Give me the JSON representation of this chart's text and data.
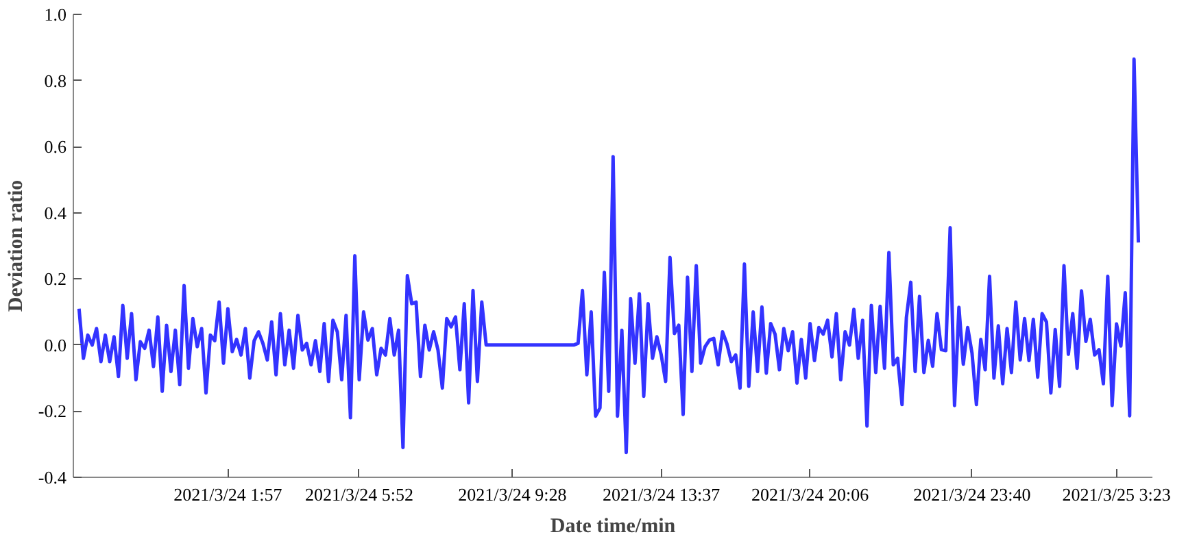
{
  "chart_data": {
    "type": "line",
    "xlabel": "Date time/min",
    "ylabel": "Deviation ratio",
    "categories": [
      null,
      null,
      null,
      null,
      null,
      null,
      null,
      null,
      null,
      null,
      null,
      null,
      null,
      null,
      null,
      null,
      null,
      null,
      null,
      null,
      null,
      null,
      null,
      null,
      null,
      null,
      null,
      null,
      null,
      null,
      null,
      null,
      null,
      null,
      "2021/3/24 1:57",
      null,
      null,
      null,
      null,
      null,
      null,
      null,
      null,
      null,
      null,
      null,
      null,
      null,
      null,
      null,
      null,
      null,
      null,
      null,
      null,
      null,
      null,
      null,
      null,
      null,
      null,
      null,
      null,
      null,
      "2021/3/24 5:52",
      null,
      null,
      null,
      null,
      null,
      null,
      null,
      null,
      null,
      null,
      null,
      null,
      null,
      null,
      null,
      null,
      null,
      null,
      null,
      null,
      null,
      null,
      null,
      null,
      null,
      null,
      null,
      null,
      null,
      null,
      null,
      null,
      null,
      null,
      "2021/3/24 9:28",
      null,
      null,
      null,
      null,
      null,
      null,
      null,
      null,
      null,
      null,
      null,
      null,
      null,
      null,
      null,
      null,
      null,
      null,
      null,
      null,
      null,
      null,
      null,
      null,
      null,
      null,
      null,
      null,
      null,
      null,
      null,
      null,
      null,
      "2021/3/24 13:37",
      null,
      null,
      null,
      null,
      null,
      null,
      null,
      null,
      null,
      null,
      null,
      null,
      null,
      null,
      null,
      null,
      null,
      null,
      null,
      null,
      null,
      null,
      null,
      null,
      null,
      null,
      null,
      null,
      null,
      null,
      null,
      null,
      null,
      "2021/3/24 20:06",
      null,
      null,
      null,
      null,
      null,
      null,
      null,
      null,
      null,
      null,
      null,
      null,
      null,
      null,
      null,
      null,
      null,
      null,
      null,
      null,
      null,
      null,
      null,
      null,
      null,
      null,
      null,
      null,
      null,
      null,
      null,
      null,
      null,
      null,
      null,
      null,
      "2021/3/24 23:40",
      null,
      null,
      null,
      null,
      null,
      null,
      null,
      null,
      null,
      null,
      null,
      null,
      null,
      null,
      null,
      null,
      null,
      null,
      null,
      null,
      null,
      null,
      null,
      null,
      null,
      null,
      null,
      null,
      null,
      null,
      null,
      null,
      "2021/3/25 3:23",
      null,
      null,
      null,
      null,
      null
    ],
    "series": [
      {
        "color": "#3333ff",
        "values": [
          0.11,
          -0.04,
          0.03,
          0.0,
          0.05,
          -0.05,
          0.03,
          -0.05,
          0.025,
          -0.095,
          0.12,
          -0.04,
          0.095,
          -0.105,
          0.01,
          -0.01,
          0.045,
          -0.065,
          0.085,
          -0.14,
          0.06,
          -0.08,
          0.045,
          -0.12,
          0.18,
          -0.07,
          0.08,
          -0.005,
          0.05,
          -0.145,
          0.03,
          0.013,
          0.13,
          -0.055,
          0.11,
          -0.02,
          0.017,
          -0.03,
          0.05,
          -0.1,
          0.013,
          0.04,
          0.005,
          -0.045,
          0.07,
          -0.09,
          0.095,
          -0.06,
          0.045,
          -0.07,
          0.09,
          -0.015,
          0.005,
          -0.06,
          0.013,
          -0.08,
          0.065,
          -0.11,
          0.075,
          0.04,
          -0.105,
          0.09,
          -0.22,
          0.27,
          -0.105,
          0.1,
          0.015,
          0.05,
          -0.09,
          -0.01,
          -0.03,
          0.08,
          -0.03,
          0.045,
          -0.31,
          0.21,
          0.125,
          0.13,
          -0.095,
          0.06,
          -0.015,
          0.04,
          -0.015,
          -0.13,
          0.08,
          0.055,
          0.085,
          -0.075,
          0.125,
          -0.175,
          0.165,
          -0.11,
          0.13,
          0.0,
          0.0,
          0.0,
          0.0,
          0.0,
          0.0,
          0.0,
          0.0,
          0.0,
          0.0,
          0.0,
          0.0,
          0.0,
          0.0,
          0.0,
          0.0,
          0.0,
          0.0,
          0.0,
          0.0,
          0.0,
          0.005,
          0.165,
          -0.09,
          0.1,
          -0.215,
          -0.19,
          0.22,
          -0.14,
          0.57,
          -0.215,
          0.045,
          -0.325,
          0.14,
          -0.055,
          0.155,
          -0.155,
          0.125,
          -0.04,
          0.025,
          -0.03,
          -0.11,
          0.265,
          0.035,
          0.06,
          -0.21,
          0.205,
          -0.08,
          0.24,
          -0.055,
          -0.005,
          0.015,
          0.02,
          -0.06,
          0.04,
          0.004,
          -0.05,
          -0.03,
          -0.13,
          0.245,
          -0.125,
          0.1,
          -0.08,
          0.115,
          -0.085,
          0.065,
          0.033,
          -0.075,
          0.05,
          -0.017,
          0.04,
          -0.115,
          0.017,
          -0.1,
          0.065,
          -0.047,
          0.053,
          0.033,
          0.075,
          -0.036,
          0.095,
          -0.105,
          0.04,
          0.0,
          0.108,
          -0.04,
          0.075,
          -0.245,
          0.12,
          -0.083,
          0.117,
          -0.07,
          0.28,
          -0.06,
          -0.04,
          -0.18,
          0.083,
          0.19,
          -0.08,
          0.147,
          -0.083,
          0.014,
          -0.064,
          0.095,
          -0.014,
          -0.017,
          0.355,
          -0.183,
          0.114,
          -0.058,
          0.053,
          -0.025,
          -0.18,
          0.017,
          -0.075,
          0.208,
          -0.1,
          0.058,
          -0.117,
          0.05,
          -0.083,
          0.13,
          -0.045,
          0.08,
          -0.047,
          0.078,
          -0.097,
          0.095,
          0.07,
          -0.145,
          0.047,
          -0.125,
          0.24,
          -0.028,
          0.095,
          -0.07,
          0.164,
          0.011,
          0.078,
          -0.03,
          -0.014,
          -0.117,
          0.208,
          -0.183,
          0.064,
          -0.003,
          0.158,
          -0.214,
          0.865,
          0.31
        ]
      }
    ],
    "ylim": [
      -0.4,
      1.0
    ],
    "yticks": [
      {
        "value": -0.4,
        "label": "-0.4"
      },
      {
        "value": -0.2,
        "label": "-0.2"
      },
      {
        "value": 0,
        "label": "0.0"
      },
      {
        "value": 0.2,
        "label": "0.2"
      },
      {
        "value": 0.4,
        "label": "0.4"
      },
      {
        "value": 0.6,
        "label": "0.6"
      },
      {
        "value": 0.8,
        "label": "0.8"
      },
      {
        "value": 1.0,
        "label": "1.0"
      }
    ],
    "marker": "none",
    "line_style": "solid"
  }
}
